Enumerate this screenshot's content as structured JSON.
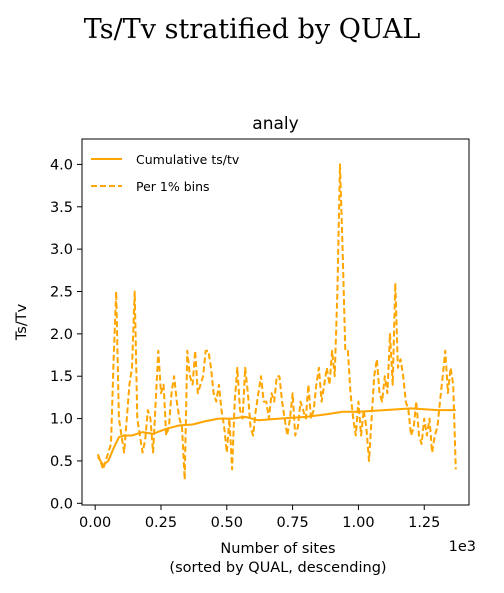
{
  "page_title": "Ts/Tv stratified by QUAL",
  "chart_data": {
    "type": "line",
    "title": "analy",
    "xlabel": "Number of sites",
    "xlabel_sub": "(sorted by QUAL, descending)",
    "ylabel": "Ts/Tv",
    "x_offset_text": "1e3",
    "xlim": [
      -0.05,
      1.42
    ],
    "ylim": [
      -0.02,
      4.3
    ],
    "x_ticks": [
      0.0,
      0.25,
      0.5,
      0.75,
      1.0,
      1.25
    ],
    "x_tick_labels": [
      "0.00",
      "0.25",
      "0.50",
      "0.75",
      "1.00",
      "1.25"
    ],
    "y_ticks": [
      0.0,
      0.5,
      1.0,
      1.5,
      2.0,
      2.5,
      3.0,
      3.5,
      4.0
    ],
    "y_tick_labels": [
      "0.0",
      "0.5",
      "1.0",
      "1.5",
      "2.0",
      "2.5",
      "3.0",
      "3.5",
      "4.0"
    ],
    "grid": false,
    "legend_position": "top-left",
    "series": [
      {
        "name": "Cumulative ts/tv",
        "style": "solid",
        "color": "#ffa500",
        "x": [
          0.01,
          0.03,
          0.05,
          0.07,
          0.09,
          0.11,
          0.14,
          0.18,
          0.22,
          0.27,
          0.32,
          0.37,
          0.42,
          0.47,
          0.52,
          0.57,
          0.62,
          0.7,
          0.8,
          0.88,
          0.94,
          1.0,
          1.1,
          1.2,
          1.3,
          1.37
        ],
        "y": [
          0.55,
          0.45,
          0.5,
          0.65,
          0.78,
          0.8,
          0.8,
          0.84,
          0.82,
          0.88,
          0.92,
          0.93,
          0.97,
          1.0,
          1.0,
          1.02,
          0.98,
          1.0,
          1.02,
          1.05,
          1.08,
          1.08,
          1.1,
          1.12,
          1.1,
          1.1
        ]
      },
      {
        "name": "Per 1% bins",
        "style": "dashed",
        "color": "#ffa500",
        "x": [
          0.01,
          0.02,
          0.03,
          0.04,
          0.05,
          0.06,
          0.07,
          0.08,
          0.09,
          0.1,
          0.11,
          0.12,
          0.13,
          0.14,
          0.15,
          0.16,
          0.17,
          0.18,
          0.19,
          0.2,
          0.21,
          0.22,
          0.23,
          0.24,
          0.25,
          0.26,
          0.27,
          0.28,
          0.29,
          0.3,
          0.31,
          0.32,
          0.33,
          0.34,
          0.35,
          0.36,
          0.37,
          0.38,
          0.39,
          0.4,
          0.41,
          0.42,
          0.43,
          0.44,
          0.45,
          0.46,
          0.47,
          0.48,
          0.49,
          0.5,
          0.51,
          0.52,
          0.53,
          0.54,
          0.55,
          0.56,
          0.57,
          0.58,
          0.59,
          0.6,
          0.61,
          0.62,
          0.63,
          0.64,
          0.65,
          0.66,
          0.67,
          0.68,
          0.69,
          0.7,
          0.71,
          0.72,
          0.73,
          0.74,
          0.75,
          0.76,
          0.77,
          0.78,
          0.79,
          0.8,
          0.81,
          0.82,
          0.83,
          0.84,
          0.85,
          0.86,
          0.87,
          0.88,
          0.89,
          0.9,
          0.91,
          0.92,
          0.93,
          0.94,
          0.95,
          0.96,
          0.97,
          0.98,
          0.99,
          1.0,
          1.01,
          1.02,
          1.03,
          1.04,
          1.05,
          1.06,
          1.07,
          1.08,
          1.09,
          1.1,
          1.11,
          1.12,
          1.13,
          1.14,
          1.15,
          1.16,
          1.17,
          1.18,
          1.19,
          1.2,
          1.21,
          1.22,
          1.23,
          1.24,
          1.25,
          1.26,
          1.27,
          1.28,
          1.29,
          1.3,
          1.31,
          1.32,
          1.33,
          1.34,
          1.35,
          1.36,
          1.37
        ],
        "y": [
          0.58,
          0.5,
          0.4,
          0.5,
          0.6,
          0.7,
          1.7,
          2.5,
          1.0,
          0.8,
          0.6,
          1.0,
          1.4,
          1.6,
          2.5,
          1.0,
          0.8,
          0.6,
          0.75,
          1.1,
          1.0,
          0.6,
          1.2,
          1.8,
          1.3,
          1.4,
          0.8,
          0.9,
          1.3,
          1.5,
          1.2,
          1.0,
          0.9,
          0.28,
          1.8,
          1.5,
          1.4,
          1.8,
          1.3,
          1.4,
          1.5,
          1.8,
          1.8,
          1.6,
          1.3,
          1.2,
          1.4,
          1.1,
          0.9,
          0.6,
          1.0,
          0.4,
          1.2,
          1.6,
          1.1,
          1.0,
          1.6,
          1.3,
          0.9,
          0.8,
          1.1,
          1.3,
          1.5,
          1.2,
          1.2,
          1.0,
          1.3,
          1.2,
          1.5,
          1.5,
          1.2,
          1.0,
          0.8,
          1.0,
          1.3,
          0.8,
          0.9,
          1.2,
          1.1,
          1.0,
          1.4,
          1.0,
          1.1,
          1.4,
          1.6,
          1.2,
          1.4,
          1.6,
          1.4,
          1.8,
          1.5,
          2.5,
          4.0,
          3.0,
          1.8,
          1.8,
          1.3,
          1.0,
          0.8,
          1.2,
          0.8,
          1.1,
          0.9,
          0.5,
          1.0,
          1.5,
          1.7,
          1.3,
          1.2,
          1.5,
          1.3,
          2.0,
          1.4,
          2.6,
          1.6,
          1.7,
          1.5,
          1.2,
          1.1,
          0.8,
          0.9,
          1.2,
          0.8,
          0.7,
          1.0,
          0.8,
          1.0,
          0.6,
          0.8,
          0.9,
          1.2,
          1.5,
          1.8,
          1.3,
          1.6,
          1.4,
          0.4
        ]
      }
    ]
  }
}
